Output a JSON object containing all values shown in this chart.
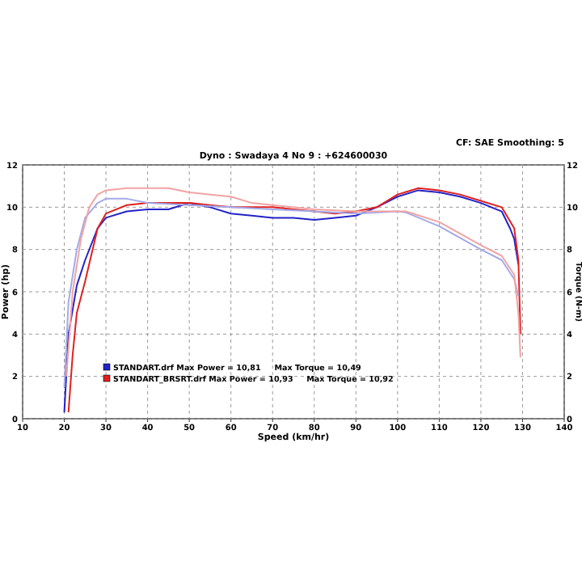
{
  "chart_data": {
    "type": "line",
    "title": "Dyno : Swadaya 4 No 9 : +624600030",
    "annotations": [
      "CF: SAE  Smoothing: 5"
    ],
    "xlabel": "Speed (km/hr)",
    "ylabel": "Power (hp)",
    "y2label": "Torque (N-m)",
    "xlim": [
      10,
      140
    ],
    "xticks": [
      10,
      20,
      30,
      40,
      50,
      60,
      70,
      80,
      90,
      100,
      110,
      120,
      130,
      140
    ],
    "ylim": [
      0,
      12
    ],
    "yticks": [
      0,
      2,
      4,
      6,
      8,
      10,
      12
    ],
    "y2lim": [
      0,
      12
    ],
    "y2ticks": [
      0,
      2,
      4,
      6,
      8,
      10,
      12
    ],
    "grid": true,
    "legend": "bottom left",
    "marker": "none",
    "line_style": "solid",
    "series": [
      {
        "name": "STANDART.drf Max Power = 10,81     Max Torque = 10,49",
        "color": "#2323c8",
        "x": [
          20,
          21,
          23,
          25,
          28,
          30,
          35,
          40,
          45,
          50,
          55,
          60,
          65,
          70,
          75,
          80,
          85,
          90,
          95,
          100,
          105,
          110,
          115,
          120,
          125,
          127,
          128,
          129
        ],
        "values": [
          0.3,
          4,
          6.3,
          7.5,
          9,
          9.5,
          9.8,
          9.9,
          9.9,
          10.2,
          10,
          9.7,
          9.6,
          9.5,
          9.5,
          9.4,
          9.5,
          9.6,
          10,
          10.5,
          10.8,
          10.7,
          10.5,
          10.2,
          9.8,
          9,
          8.5,
          7.3
        ]
      },
      {
        "name": "STANDART_BRSRT.drf Max Power = 10,93     Max Torque = 10,92",
        "color": "#e02020",
        "x": [
          21,
          22,
          23,
          25,
          28,
          30,
          35,
          40,
          45,
          50,
          55,
          60,
          65,
          70,
          75,
          80,
          85,
          90,
          95,
          100,
          105,
          110,
          115,
          120,
          125,
          128,
          129,
          129.5
        ],
        "values": [
          0.3,
          3,
          5,
          6.5,
          9,
          9.7,
          10.1,
          10.2,
          10.2,
          10.2,
          10.1,
          10,
          10,
          10,
          9.9,
          9.8,
          9.7,
          9.8,
          10,
          10.6,
          10.9,
          10.8,
          10.6,
          10.3,
          10,
          9,
          7.5,
          4
        ]
      },
      {
        "color": "#a3aae8",
        "x": [
          20,
          21,
          23,
          25,
          28,
          30,
          35,
          40,
          50,
          60,
          70,
          80,
          90,
          100,
          102,
          110,
          120,
          125,
          128,
          129
        ],
        "values": [
          1.5,
          5.5,
          8,
          9.5,
          10.2,
          10.4,
          10.4,
          10.2,
          10.1,
          10,
          9.9,
          9.8,
          9.7,
          9.8,
          9.75,
          9.1,
          8,
          7.5,
          6.6,
          5.8
        ]
      },
      {
        "color": "#f2a3a3",
        "x": [
          20.5,
          22,
          24,
          26,
          28,
          30,
          35,
          40,
          45,
          50,
          55,
          60,
          65,
          70,
          80,
          90,
          100,
          102,
          110,
          120,
          125,
          128,
          129,
          129.5
        ],
        "values": [
          2,
          6,
          8.5,
          10,
          10.6,
          10.8,
          10.9,
          10.9,
          10.9,
          10.7,
          10.6,
          10.5,
          10.2,
          10.1,
          9.9,
          9.8,
          9.8,
          9.8,
          9.3,
          8.2,
          7.7,
          6.8,
          5,
          2.9
        ]
      }
    ]
  }
}
